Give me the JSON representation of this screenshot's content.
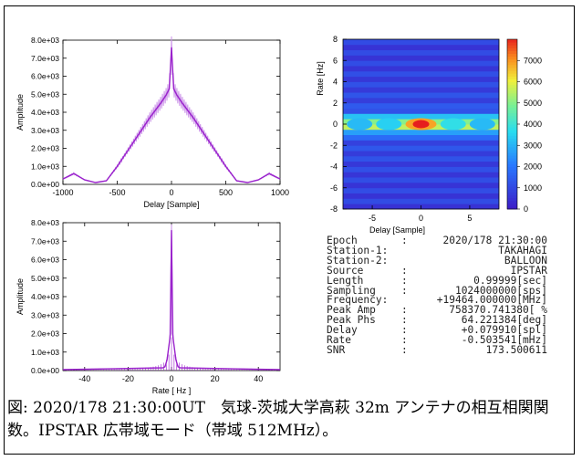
{
  "figure": {
    "caption": "図: 2020/178 21:30:00UT　気球-茨城大学高萩 32m アンテナの相互相関関数。IPSTAR 広帯域モード（帯域 512MHz）。"
  },
  "info": [
    {
      "key": "Epoch",
      "sep": ":",
      "value": "2020/178 21:30:00"
    },
    {
      "key": "Station-1:",
      "sep": "",
      "value": "TAKAHAGI"
    },
    {
      "key": "Station-2:",
      "sep": "",
      "value": "BALLOON"
    },
    {
      "key": "Source",
      "sep": ":",
      "value": "IPSTAR"
    },
    {
      "key": "Length",
      "sep": ":",
      "value": "0.99999[sec]"
    },
    {
      "key": "Sampling",
      "sep": ":",
      "value": "1024000000[sps]"
    },
    {
      "key": "Frequency:",
      "sep": "",
      "value": "+19464.000000[MHz]"
    },
    {
      "key": "Peak Amp",
      "sep": ":",
      "value": "758370.741380[ %"
    },
    {
      "key": "Peak Phs",
      "sep": ":",
      "value": "64.221384[deg]"
    },
    {
      "key": "Delay",
      "sep": ":",
      "value": "+0.079910[spl]"
    },
    {
      "key": "Rate",
      "sep": ":",
      "value": "-0.503541[mHz]"
    },
    {
      "key": "SNR",
      "sep": ":",
      "value": "173.500611"
    }
  ],
  "colors": {
    "trace": "#9a22cc",
    "trace_light": "#c98ee8"
  },
  "chart_data": [
    {
      "id": "delay",
      "type": "line",
      "xlabel": "Delay [Sample]",
      "ylabel": "Amplitude",
      "xlim": [
        -1000,
        1000
      ],
      "ylim": [
        0,
        8000
      ],
      "xticks": [
        "-1000",
        "-500",
        "0",
        "500",
        "1000"
      ],
      "yticks": [
        "0.0e+00",
        "1.0e+03",
        "2.0e+03",
        "3.0e+03",
        "4.0e+03",
        "5.0e+03",
        "6.0e+03",
        "7.0e+03",
        "8.0e+03"
      ],
      "x": [
        -1000,
        -900,
        -800,
        -700,
        -600,
        -500,
        -400,
        -300,
        -200,
        -100,
        -50,
        -20,
        0,
        20,
        50,
        100,
        200,
        300,
        400,
        500,
        600,
        700,
        800,
        900,
        1000
      ],
      "y": [
        300,
        600,
        250,
        100,
        200,
        1000,
        1900,
        2800,
        3700,
        4500,
        4950,
        5300,
        7600,
        5300,
        4950,
        4500,
        3700,
        2800,
        1900,
        1000,
        200,
        100,
        250,
        600,
        300
      ]
    },
    {
      "id": "rate",
      "type": "line",
      "xlabel": "Rate [ Hz ]",
      "ylabel": "Amplitude",
      "xlim": [
        -50,
        50
      ],
      "ylim": [
        0,
        8000
      ],
      "xticks": [
        "-40",
        "-20",
        "0",
        "20",
        "40"
      ],
      "yticks": [
        "0.0e+00",
        "1.0e+03",
        "2.0e+03",
        "3.0e+03",
        "4.0e+03",
        "5.0e+03",
        "6.0e+03",
        "7.0e+03",
        "8.0e+03"
      ],
      "x": [
        -50,
        -4,
        -3,
        -2,
        -1,
        -0.5,
        0,
        0.5,
        1,
        2,
        3,
        4,
        50
      ],
      "y": [
        50,
        150,
        200,
        600,
        1500,
        2000,
        7600,
        2000,
        1500,
        600,
        200,
        150,
        50
      ]
    },
    {
      "id": "map",
      "type": "heatmap",
      "xlabel": "Delay [Sample]",
      "ylabel": "Rate [Hz]",
      "xlim": [
        -8,
        8
      ],
      "ylim": [
        -8,
        8
      ],
      "xticks": [
        "-5",
        "0",
        "5"
      ],
      "yticks": [
        "-8",
        "-6",
        "-4",
        "-2",
        "0",
        "2",
        "4",
        "6",
        "8"
      ],
      "colorbar": [
        "0",
        "1000",
        "2000",
        "3000",
        "4000",
        "5000",
        "6000",
        "7000",
        "8000"
      ],
      "zmax": 8000
    }
  ]
}
